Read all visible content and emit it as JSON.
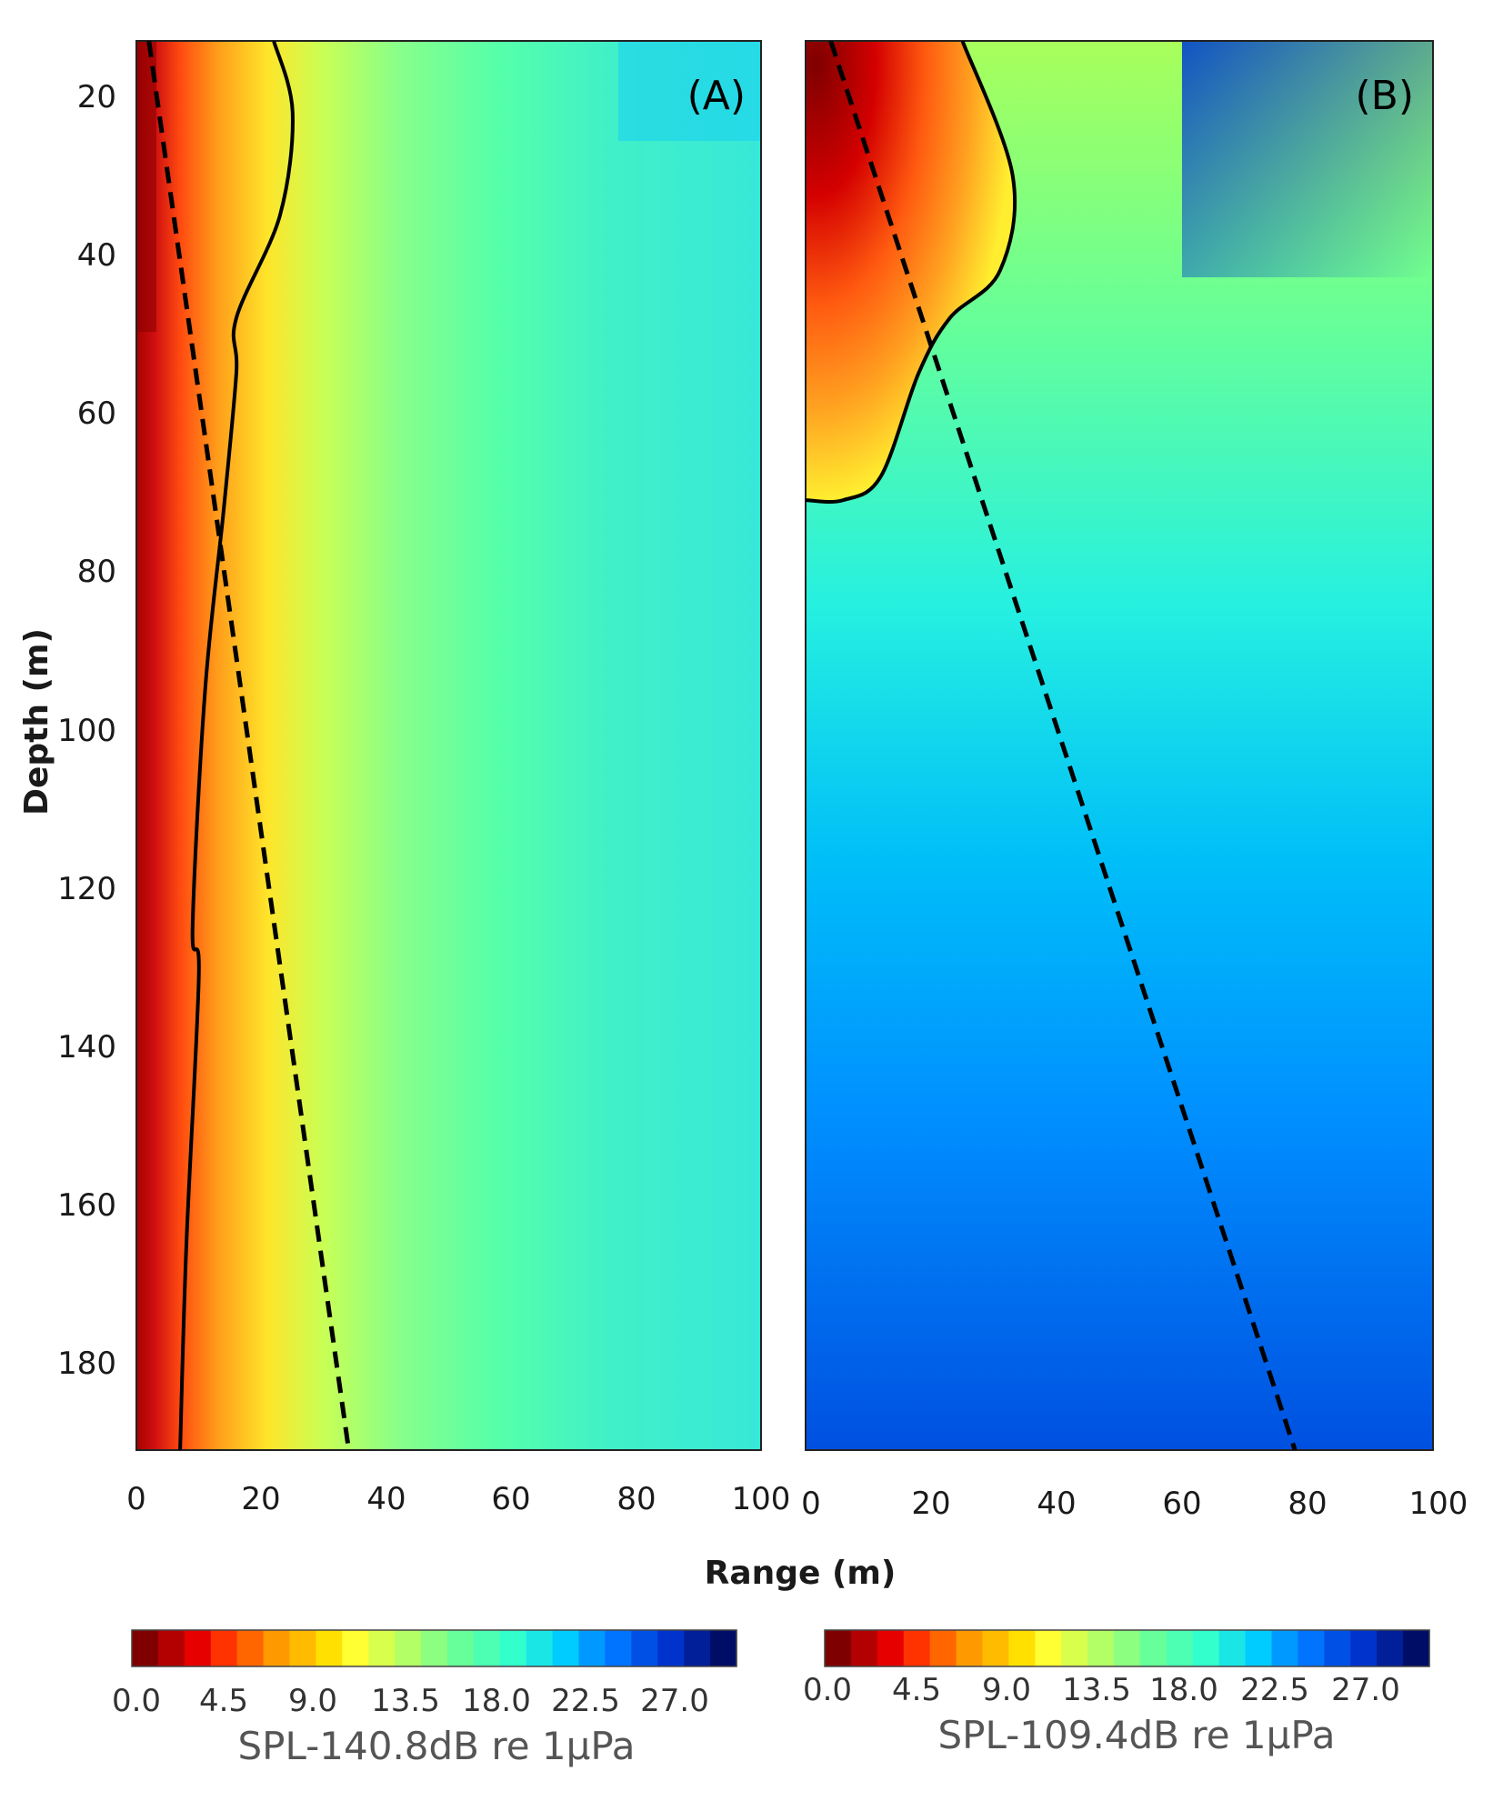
{
  "chart_data": [
    {
      "type": "heatmap",
      "panel_label": "(A)",
      "xlabel": "Range (m)",
      "ylabel": "Depth (m)",
      "xlim": [
        0,
        100
      ],
      "ylim": [
        13,
        191
      ],
      "y_inverted": true,
      "x_ticks": [
        0,
        20,
        40,
        60,
        80,
        100
      ],
      "y_ticks": [
        20,
        40,
        60,
        80,
        100,
        120,
        140,
        160,
        180
      ],
      "zones": [
        {
          "x": [
            0,
            3
          ],
          "value": 1.0
        },
        {
          "x": [
            3,
            6
          ],
          "value": 3.5
        },
        {
          "x": [
            6,
            12
          ],
          "value": 6.5
        },
        {
          "x": [
            12,
            22
          ],
          "value": 10.5
        },
        {
          "x": [
            22,
            40
          ],
          "value": 13.5
        },
        {
          "x": [
            40,
            100
          ],
          "value": 16.5
        }
      ],
      "solid_line": [
        [
          22,
          13
        ],
        [
          25,
          22
        ],
        [
          23,
          35
        ],
        [
          16,
          48
        ],
        [
          16,
          55
        ],
        [
          14,
          72
        ],
        [
          11,
          95
        ],
        [
          9,
          125
        ],
        [
          10,
          131
        ],
        [
          8,
          165
        ],
        [
          7,
          191
        ]
      ],
      "dashed_line": [
        [
          2,
          13
        ],
        [
          34,
          191
        ]
      ],
      "colorbar": {
        "label": "SPL-140.8dB re 1μPa",
        "ticks": [
          "0.0",
          "4.5",
          "9.0",
          "13.5",
          "18.0",
          "22.5",
          "27.0"
        ],
        "range": [
          0,
          30
        ]
      }
    },
    {
      "type": "heatmap",
      "panel_label": "(B)",
      "xlabel": "Range (m)",
      "ylabel": "Depth (m)",
      "xlim": [
        0,
        100
      ],
      "ylim": [
        13,
        191
      ],
      "y_inverted": true,
      "x_ticks": [
        0,
        20,
        40,
        60,
        80,
        100
      ],
      "y_ticks": [
        20,
        40,
        60,
        80,
        100,
        120,
        140,
        160,
        180
      ],
      "zones": [
        {
          "x": [
            0,
            100
          ],
          "y": [
            13,
            40
          ],
          "value": 13.0
        },
        {
          "x": [
            0,
            100
          ],
          "y": [
            40,
            90
          ],
          "value": 16.5
        },
        {
          "x": [
            0,
            100
          ],
          "y": [
            90,
            145
          ],
          "value": 19.5
        },
        {
          "x": [
            0,
            100
          ],
          "y": [
            145,
            191
          ],
          "value": 22.5
        },
        {
          "x": [
            0,
            15
          ],
          "y": [
            13,
            60
          ],
          "value": 2.0
        }
      ],
      "solid_line": [
        [
          25,
          13
        ],
        [
          33,
          30
        ],
        [
          31,
          42
        ],
        [
          23,
          48
        ],
        [
          18,
          55
        ],
        [
          12,
          68
        ],
        [
          6,
          71
        ],
        [
          0,
          71
        ]
      ],
      "dashed_line": [
        [
          4,
          13
        ],
        [
          78,
          191
        ]
      ],
      "colorbar": {
        "label": "SPL-109.4dB re 1μPa",
        "ticks": [
          "0.0",
          "4.5",
          "9.0",
          "13.5",
          "18.0",
          "22.5",
          "27.0"
        ],
        "range": [
          0,
          30
        ]
      }
    }
  ],
  "colormap": [
    "#7f0000",
    "#b30000",
    "#e60000",
    "#ff3300",
    "#ff6600",
    "#ff9900",
    "#ffbb00",
    "#ffe000",
    "#ffff33",
    "#d9ff4d",
    "#b3ff66",
    "#8cff80",
    "#66ff99",
    "#4dffb3",
    "#33ffcc",
    "#1ae6e6",
    "#00ccff",
    "#0099ff",
    "#0073ff",
    "#0050e6",
    "#0033cc",
    "#001f99",
    "#000d66"
  ]
}
